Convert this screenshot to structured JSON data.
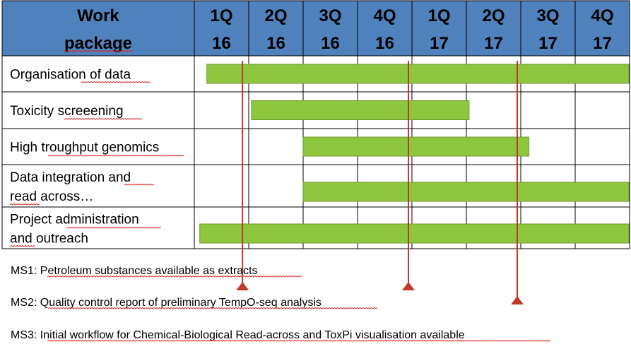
{
  "header": {
    "wp_line1": "Work",
    "wp_line2": "package",
    "quarters": [
      {
        "q": "1Q",
        "y": "16"
      },
      {
        "q": "2Q",
        "y": "16"
      },
      {
        "q": "3Q",
        "y": "16"
      },
      {
        "q": "4Q",
        "y": "16"
      },
      {
        "q": "1Q",
        "y": "17"
      },
      {
        "q": "2Q",
        "y": "17"
      },
      {
        "q": "3Q",
        "y": "17"
      },
      {
        "q": "4Q",
        "y": "17"
      }
    ]
  },
  "work_packages": [
    {
      "lines": [
        "Organisation of data"
      ],
      "start": 0.23,
      "end": 8.0
    },
    {
      "lines": [
        "Toxicity screeening"
      ],
      "start": 1.05,
      "end": 5.05
    },
    {
      "lines": [
        "High troughput genomics"
      ],
      "start": 2.0,
      "end": 6.15
    },
    {
      "lines": [
        "Data integration and",
        "read across…"
      ],
      "start": 2.0,
      "end": 8.0
    },
    {
      "lines": [
        "Project administration",
        "and outreach"
      ],
      "start": 0.1,
      "end": 8.0
    }
  ],
  "milestones": [
    {
      "label": "MS1: Petroleum substances available as extracts",
      "at": 0.95
    },
    {
      "label": "MS2: Quality control report of preliminary TempO-seq analysis",
      "at": 4.0
    },
    {
      "label": "MS3: Initial workflow for Chemical-Biological Read-across and ToxPi visualisation available",
      "at": 6.0
    }
  ],
  "colors": {
    "header_bg": "#4f81bd",
    "bar_fill": "#8dc63f",
    "bar_stroke": "#6f9a2c",
    "milestone": "#c0392b",
    "grid": "#000000"
  }
}
